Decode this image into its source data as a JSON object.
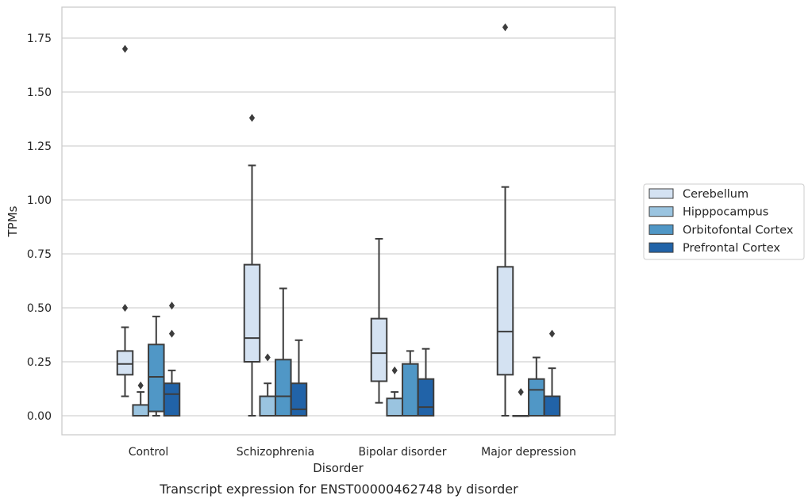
{
  "caption": "Transcript expression for ENST00000462748 by disorder",
  "chart_data": {
    "type": "boxplot",
    "title": "",
    "xlabel": "Disorder",
    "ylabel": "TPMs",
    "ylim": [
      -0.09,
      1.89
    ],
    "yticks": [
      0.0,
      0.25,
      0.5,
      0.75,
      1.0,
      1.25,
      1.5,
      1.75
    ],
    "ytick_labels": [
      "0.00",
      "0.25",
      "0.50",
      "0.75",
      "1.00",
      "1.25",
      "1.50",
      "1.75"
    ],
    "grid": "horizontal",
    "legend_position": "right",
    "categories": [
      "Control",
      "Schizophrenia",
      "Bipolar disorder",
      "Major depression"
    ],
    "series": [
      {
        "name": "Cerebellum",
        "color": "#d4e2f2",
        "boxes": [
          {
            "whislo": 0.09,
            "q1": 0.19,
            "med": 0.24,
            "q3": 0.3,
            "whishi": 0.41,
            "fliers": [
              0.5,
              1.7
            ]
          },
          {
            "whislo": 0.0,
            "q1": 0.25,
            "med": 0.36,
            "q3": 0.7,
            "whishi": 1.16,
            "fliers": [
              1.38
            ]
          },
          {
            "whislo": 0.06,
            "q1": 0.16,
            "med": 0.29,
            "q3": 0.45,
            "whishi": 0.82,
            "fliers": []
          },
          {
            "whislo": 0.0,
            "q1": 0.19,
            "med": 0.39,
            "q3": 0.69,
            "whishi": 1.06,
            "fliers": [
              1.8
            ]
          }
        ]
      },
      {
        "name": "Hipppocampus",
        "color": "#9ac4e0",
        "boxes": [
          {
            "whislo": 0.0,
            "q1": 0.0,
            "med": 0.0,
            "q3": 0.05,
            "whishi": 0.11,
            "fliers": [
              0.14
            ]
          },
          {
            "whislo": 0.0,
            "q1": 0.0,
            "med": 0.0,
            "q3": 0.09,
            "whishi": 0.15,
            "fliers": [
              0.27
            ]
          },
          {
            "whislo": 0.0,
            "q1": 0.0,
            "med": 0.0,
            "q3": 0.08,
            "whishi": 0.11,
            "fliers": [
              0.21
            ]
          },
          {
            "whislo": 0.0,
            "q1": 0.0,
            "med": 0.0,
            "q3": 0.0,
            "whishi": 0.0,
            "fliers": [
              0.11
            ]
          }
        ]
      },
      {
        "name": "Orbitofontal Cortex",
        "color": "#5097c6",
        "boxes": [
          {
            "whislo": 0.0,
            "q1": 0.02,
            "med": 0.18,
            "q3": 0.33,
            "whishi": 0.46,
            "fliers": []
          },
          {
            "whislo": 0.0,
            "q1": 0.0,
            "med": 0.09,
            "q3": 0.26,
            "whishi": 0.59,
            "fliers": []
          },
          {
            "whislo": 0.0,
            "q1": 0.0,
            "med": 0.0,
            "q3": 0.24,
            "whishi": 0.3,
            "fliers": []
          },
          {
            "whislo": 0.0,
            "q1": 0.0,
            "med": 0.12,
            "q3": 0.17,
            "whishi": 0.27,
            "fliers": []
          }
        ]
      },
      {
        "name": "Prefrontal Cortex",
        "color": "#2163a8",
        "boxes": [
          {
            "whislo": 0.0,
            "q1": 0.0,
            "med": 0.1,
            "q3": 0.15,
            "whishi": 0.21,
            "fliers": [
              0.38,
              0.51
            ]
          },
          {
            "whislo": 0.0,
            "q1": 0.0,
            "med": 0.03,
            "q3": 0.15,
            "whishi": 0.35,
            "fliers": []
          },
          {
            "whislo": 0.0,
            "q1": 0.0,
            "med": 0.04,
            "q3": 0.17,
            "whishi": 0.31,
            "fliers": []
          },
          {
            "whislo": 0.0,
            "q1": 0.0,
            "med": 0.0,
            "q3": 0.09,
            "whishi": 0.22,
            "fliers": [
              0.38
            ]
          }
        ]
      }
    ]
  }
}
